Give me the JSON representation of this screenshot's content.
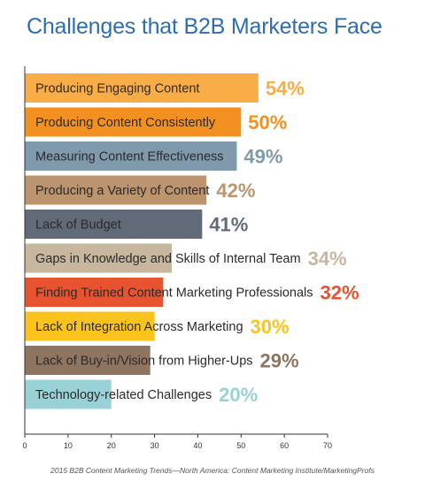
{
  "chart_data": {
    "type": "bar",
    "orientation": "horizontal",
    "title": "Challenges that B2B Marketers Face",
    "categories": [
      "Producing Engaging Content",
      "Producing Content Consistently",
      "Measuring Content Effectiveness",
      "Producing a Variety of Content",
      "Lack of Budget",
      "Gaps in Knowledge and Skills of Internal Team",
      "Finding Trained Content Marketing Professionals",
      "Lack of Integration Across Marketing",
      "Lack of Buy-in/Vision from Higher-Ups",
      "Technology-related Challenges"
    ],
    "values": [
      54,
      50,
      49,
      42,
      41,
      34,
      32,
      30,
      29,
      20
    ],
    "value_labels": [
      "54%",
      "50%",
      "49%",
      "42%",
      "41%",
      "34%",
      "32%",
      "30%",
      "29%",
      "20%"
    ],
    "colors": [
      "#f8ad46",
      "#f39120",
      "#7f9aac",
      "#bc946e",
      "#616a78",
      "#c7b79f",
      "#e6532e",
      "#fbc31b",
      "#8f7460",
      "#99d2d6"
    ],
    "xlim": [
      0,
      70
    ],
    "xticks": [
      0,
      10,
      20,
      30,
      40,
      50,
      60,
      70
    ],
    "grid": false,
    "xlabel": "",
    "ylabel": ""
  },
  "source": "2015 B2B Content Marketing Trends—North America: Content Marketing Institute/MarketingProfs"
}
